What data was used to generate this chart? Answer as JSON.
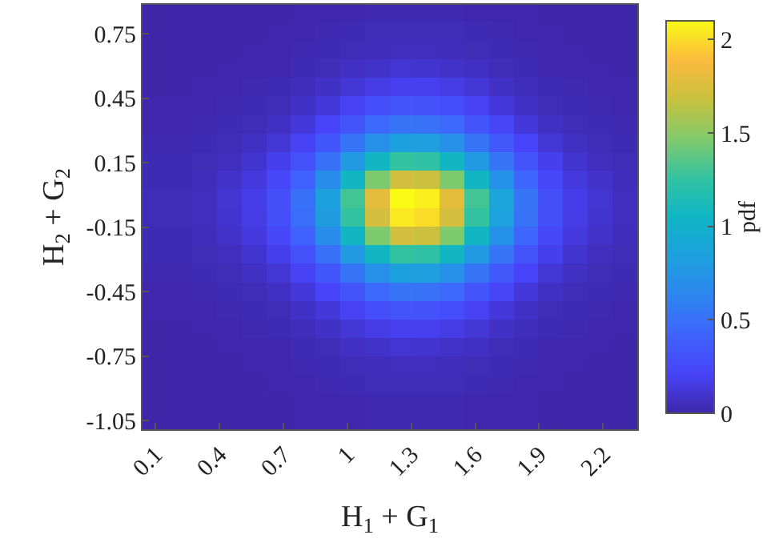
{
  "chart_data": {
    "type": "heatmap",
    "xlabel": "H$_{1}$ + G$_{1}$",
    "ylabel": "H$_{2}$ + G$_{2}$",
    "clabel": "pdf",
    "x": [
      0.098,
      0.214,
      0.33,
      0.446,
      0.562,
      0.678,
      0.794,
      0.91,
      1.026,
      1.142,
      1.258,
      1.374,
      1.49,
      1.606,
      1.722,
      1.838,
      1.954,
      2.07,
      2.186,
      2.302
    ],
    "y": [
      0.848,
      0.761,
      0.675,
      0.588,
      0.502,
      0.415,
      0.328,
      0.242,
      0.155,
      0.069,
      -0.018,
      -0.105,
      -0.191,
      -0.278,
      -0.364,
      -0.451,
      -0.538,
      -0.624,
      -0.711,
      -0.797,
      -0.884,
      -0.971,
      -1.057
    ],
    "cells": [
      [
        0,
        0,
        0,
        0,
        0,
        0,
        0.01,
        0.01,
        0.01,
        0.02,
        0.02,
        0.02,
        0.02,
        0.01,
        0.01,
        0.01,
        0,
        0,
        0,
        0
      ],
      [
        0,
        0,
        0,
        0,
        0,
        0.01,
        0.01,
        0.02,
        0.03,
        0.04,
        0.04,
        0.04,
        0.04,
        0.03,
        0.02,
        0.01,
        0.01,
        0,
        0,
        0
      ],
      [
        0,
        0,
        0,
        0,
        0.01,
        0.01,
        0.02,
        0.03,
        0.04,
        0.05,
        0.06,
        0.06,
        0.05,
        0.04,
        0.03,
        0.02,
        0.01,
        0.01,
        0,
        0
      ],
      [
        0,
        0,
        0,
        0.01,
        0.01,
        0.01,
        0.03,
        0.04,
        0.07,
        0.09,
        0.11,
        0.1,
        0.09,
        0.07,
        0.04,
        0.03,
        0.01,
        0.01,
        0.01,
        0
      ],
      [
        0,
        0,
        0.01,
        0.01,
        0.02,
        0.03,
        0.05,
        0.08,
        0.12,
        0.16,
        0.19,
        0.19,
        0.16,
        0.12,
        0.08,
        0.05,
        0.03,
        0.02,
        0.01,
        0.01
      ],
      [
        0.01,
        0.01,
        0.01,
        0.02,
        0.03,
        0.04,
        0.08,
        0.13,
        0.2,
        0.27,
        0.32,
        0.31,
        0.27,
        0.2,
        0.13,
        0.08,
        0.04,
        0.03,
        0.02,
        0.01
      ],
      [
        0.01,
        0.01,
        0.02,
        0.03,
        0.04,
        0.07,
        0.13,
        0.21,
        0.33,
        0.45,
        0.53,
        0.51,
        0.45,
        0.33,
        0.22,
        0.13,
        0.07,
        0.04,
        0.03,
        0.02
      ],
      [
        0.02,
        0.02,
        0.03,
        0.04,
        0.07,
        0.12,
        0.2,
        0.34,
        0.52,
        0.71,
        0.84,
        0.82,
        0.71,
        0.52,
        0.35,
        0.21,
        0.12,
        0.07,
        0.04,
        0.03
      ],
      [
        0.03,
        0.03,
        0.04,
        0.06,
        0.1,
        0.18,
        0.3,
        0.5,
        0.78,
        1.07,
        1.26,
        1.23,
        1.07,
        0.78,
        0.53,
        0.32,
        0.18,
        0.1,
        0.06,
        0.04
      ],
      [
        0.03,
        0.03,
        0.05,
        0.09,
        0.14,
        0.24,
        0.41,
        0.69,
        1.07,
        1.46,
        1.72,
        1.69,
        1.46,
        1.07,
        0.72,
        0.43,
        0.24,
        0.14,
        0.09,
        0.05
      ],
      [
        0.04,
        0.04,
        0.06,
        0.11,
        0.17,
        0.29,
        0.5,
        0.84,
        1.3,
        1.79,
        2.1,
        2.06,
        1.79,
        1.3,
        0.88,
        0.53,
        0.29,
        0.17,
        0.11,
        0.06
      ],
      [
        0.04,
        0.04,
        0.06,
        0.1,
        0.16,
        0.29,
        0.49,
        0.81,
        1.26,
        1.73,
        2.04,
        2.0,
        1.73,
        1.26,
        0.86,
        0.51,
        0.29,
        0.16,
        0.1,
        0.06
      ],
      [
        0.03,
        0.03,
        0.05,
        0.09,
        0.14,
        0.24,
        0.41,
        0.69,
        1.07,
        1.46,
        1.72,
        1.69,
        1.46,
        1.07,
        0.72,
        0.43,
        0.24,
        0.14,
        0.09,
        0.05
      ],
      [
        0.03,
        0.03,
        0.04,
        0.06,
        0.1,
        0.18,
        0.3,
        0.5,
        0.78,
        1.07,
        1.26,
        1.23,
        1.07,
        0.78,
        0.53,
        0.32,
        0.18,
        0.1,
        0.06,
        0.04
      ],
      [
        0.02,
        0.02,
        0.03,
        0.04,
        0.07,
        0.12,
        0.2,
        0.34,
        0.52,
        0.71,
        0.84,
        0.82,
        0.71,
        0.52,
        0.35,
        0.21,
        0.12,
        0.07,
        0.04,
        0.03
      ],
      [
        0.01,
        0.01,
        0.02,
        0.03,
        0.04,
        0.07,
        0.13,
        0.21,
        0.33,
        0.45,
        0.53,
        0.51,
        0.45,
        0.33,
        0.22,
        0.13,
        0.07,
        0.04,
        0.03,
        0.02
      ],
      [
        0.01,
        0.01,
        0.01,
        0.02,
        0.03,
        0.04,
        0.08,
        0.13,
        0.2,
        0.27,
        0.32,
        0.31,
        0.27,
        0.2,
        0.13,
        0.08,
        0.04,
        0.03,
        0.02,
        0.01
      ],
      [
        0,
        0,
        0.01,
        0.01,
        0.02,
        0.03,
        0.05,
        0.08,
        0.12,
        0.16,
        0.19,
        0.19,
        0.16,
        0.12,
        0.08,
        0.05,
        0.03,
        0.02,
        0.01,
        0.01
      ],
      [
        0,
        0,
        0,
        0.01,
        0.01,
        0.01,
        0.03,
        0.04,
        0.07,
        0.09,
        0.11,
        0.1,
        0.09,
        0.07,
        0.04,
        0.03,
        0.01,
        0.01,
        0.01,
        0
      ],
      [
        0,
        0,
        0,
        0,
        0.01,
        0.01,
        0.02,
        0.03,
        0.04,
        0.05,
        0.06,
        0.06,
        0.05,
        0.04,
        0.03,
        0.02,
        0.01,
        0.01,
        0,
        0
      ],
      [
        0,
        0,
        0,
        0,
        0,
        0.01,
        0.01,
        0.02,
        0.03,
        0.04,
        0.04,
        0.04,
        0.04,
        0.03,
        0.02,
        0.01,
        0.01,
        0,
        0,
        0
      ],
      [
        0,
        0,
        0,
        0,
        0,
        0,
        0.01,
        0.01,
        0.01,
        0.02,
        0.02,
        0.02,
        0.02,
        0.01,
        0.01,
        0.01,
        0,
        0,
        0,
        0
      ],
      [
        0,
        0,
        0,
        0,
        0,
        0,
        0.01,
        0.01,
        0.01,
        0.02,
        0.02,
        0.02,
        0.02,
        0.01,
        0.01,
        0.01,
        0,
        0,
        0,
        0
      ]
    ],
    "xlim": [
      0.04,
      2.36
    ],
    "ylim": [
      -1.09,
      0.885
    ],
    "xticks": [
      0.1,
      0.4,
      0.7,
      1,
      1.3,
      1.6,
      1.9,
      2.2
    ],
    "yticks": [
      -1.05,
      -0.75,
      -0.45,
      -0.15,
      0.15,
      0.45,
      0.75
    ],
    "clim": [
      0,
      2.1
    ],
    "cticks": [
      0,
      0.5,
      1,
      1.5,
      2
    ]
  }
}
